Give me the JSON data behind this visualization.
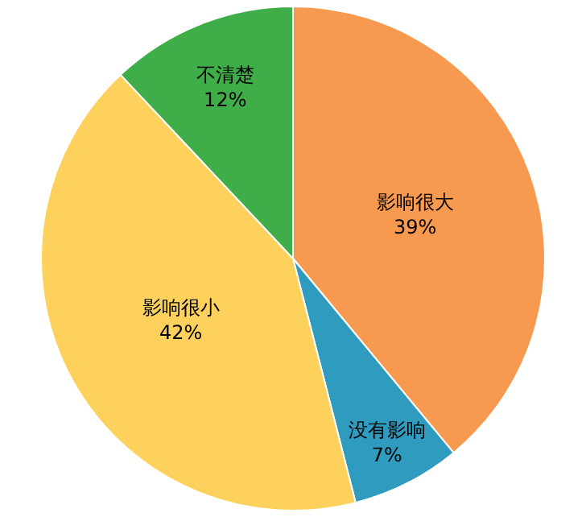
{
  "chart_data": {
    "type": "pie",
    "categories": [
      "影响很大",
      "没有影响",
      "影响很小",
      "不清楚"
    ],
    "values": [
      39,
      7,
      42,
      12
    ],
    "value_labels": [
      "39%",
      "7%",
      "42%",
      "12%"
    ],
    "colors": [
      "#f79a4f",
      "#2e9bbf",
      "#fdd15b",
      "#3fae49"
    ],
    "legend": false
  }
}
